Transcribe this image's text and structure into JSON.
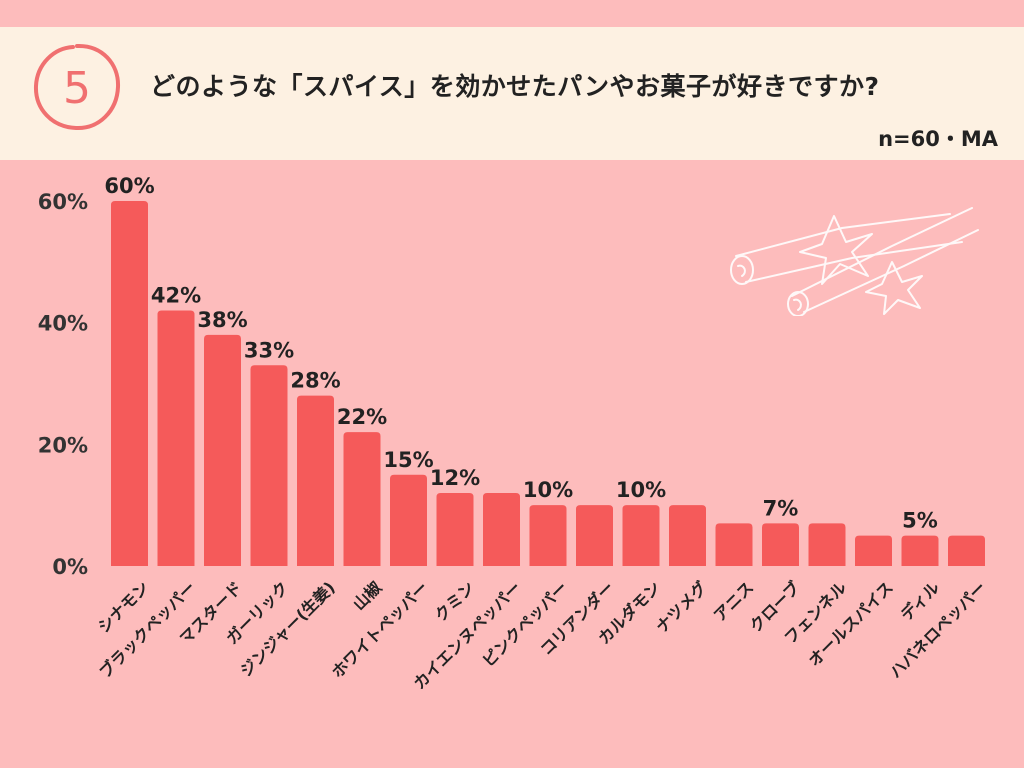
{
  "header": {
    "number": "5",
    "title": "どのような「スパイス」を効かせたパンやお菓子が好きですか?",
    "subtitle": "n=60・MA"
  },
  "colors": {
    "background": "#fdbcbc",
    "header_bg": "#fdf1e2",
    "bar": "#f55a5a",
    "circle": "#f07070",
    "text": "#222222"
  },
  "decoration": {
    "icon": "cinnamon-star-anise-icon"
  },
  "chart_data": {
    "type": "bar",
    "ylim": [
      0,
      60
    ],
    "yticks": [
      0,
      20,
      40,
      60
    ],
    "ytick_labels": [
      "0%",
      "20%",
      "40%",
      "60%"
    ],
    "grid": false,
    "categories": [
      "シナモン",
      "ブラックペッパー",
      "マスタード",
      "ガーリック",
      "ジンジャー(生姜)",
      "山椒",
      "ホワイトペッパー",
      "クミン",
      "カイエンヌペッパー",
      "ピンクペッパー",
      "コリアンダー",
      "カルダモン",
      "ナツメグ",
      "アニス",
      "クローブ",
      "フェンネル",
      "オールスパイス",
      "ディル",
      "ハバネロペッパー"
    ],
    "values": [
      60,
      42,
      38,
      33,
      28,
      22,
      15,
      12,
      12,
      10,
      10,
      10,
      10,
      7,
      7,
      7,
      5,
      5,
      5
    ],
    "data_labels": [
      "60%",
      "42%",
      "38%",
      "33%",
      "28%",
      "22%",
      "15%",
      "12%",
      "",
      "10%",
      "",
      "10%",
      "",
      "",
      "7%",
      "",
      "",
      "5%",
      ""
    ]
  }
}
